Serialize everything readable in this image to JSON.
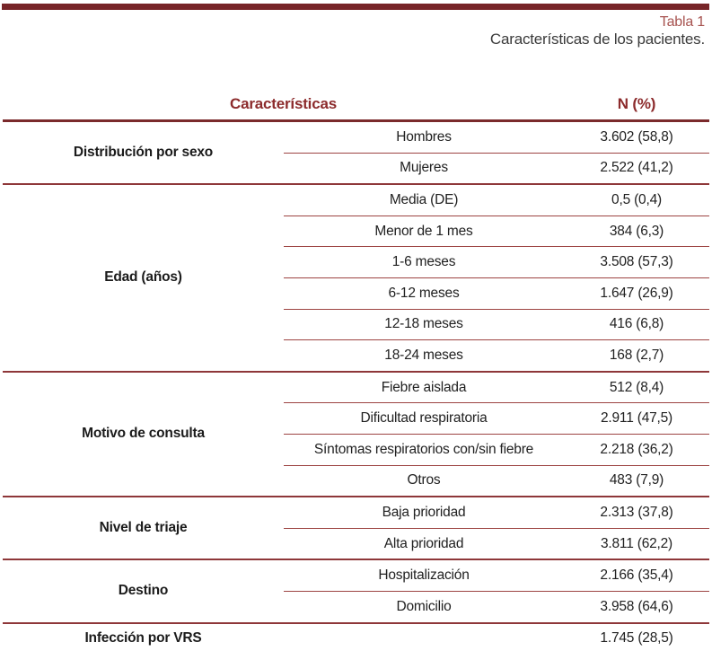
{
  "caption": {
    "number": "Tabla 1",
    "title": "Características de los pacientes."
  },
  "header": {
    "characteristics": "Características",
    "n_percent": "N (%)"
  },
  "groups": [
    {
      "label": "Distribución por sexo",
      "rows": [
        {
          "sub": "Hombres",
          "value": "3.602 (58,8)"
        },
        {
          "sub": "Mujeres",
          "value": "2.522 (41,2)"
        }
      ]
    },
    {
      "label": "Edad (años)",
      "rows": [
        {
          "sub": "Media (DE)",
          "value": "0,5 (0,4)"
        },
        {
          "sub": "Menor de 1 mes",
          "value": "384 (6,3)"
        },
        {
          "sub": "1-6 meses",
          "value": "3.508 (57,3)"
        },
        {
          "sub": "6-12 meses",
          "value": "1.647 (26,9)"
        },
        {
          "sub": "12-18 meses",
          "value": "416 (6,8)"
        },
        {
          "sub": "18-24 meses",
          "value": "168 (2,7)"
        }
      ]
    },
    {
      "label": "Motivo de consulta",
      "rows": [
        {
          "sub": "Fiebre aislada",
          "value": "512 (8,4)"
        },
        {
          "sub": "Dificultad respiratoria",
          "value": "2.911 (47,5)"
        },
        {
          "sub": "Síntomas respiratorios con/sin fiebre",
          "value": "2.218 (36,2)"
        },
        {
          "sub": "Otros",
          "value": "483 (7,9)"
        }
      ]
    },
    {
      "label": "Nivel de triaje",
      "rows": [
        {
          "sub": "Baja prioridad",
          "value": "2.313 (37,8)"
        },
        {
          "sub": "Alta prioridad",
          "value": "3.811 (62,2)"
        }
      ]
    },
    {
      "label": "Destino",
      "rows": [
        {
          "sub": "Hospitalización",
          "value": "2.166 (35,4)"
        },
        {
          "sub": "Domicilio",
          "value": "3.958 (64,6)"
        }
      ]
    },
    {
      "label": "Infección por VRS",
      "rows": [
        {
          "sub": "",
          "value": "1.745 (28,5)"
        }
      ]
    }
  ],
  "colors": {
    "accent_dark_maroon": "#772528",
    "rule_thick": "#7b2a2c",
    "rule_group": "#8e3739",
    "rule_thin": "#9d4442",
    "header_text": "#8c2b2c",
    "table_number_text": "#a75350",
    "body_text": "#212121"
  }
}
